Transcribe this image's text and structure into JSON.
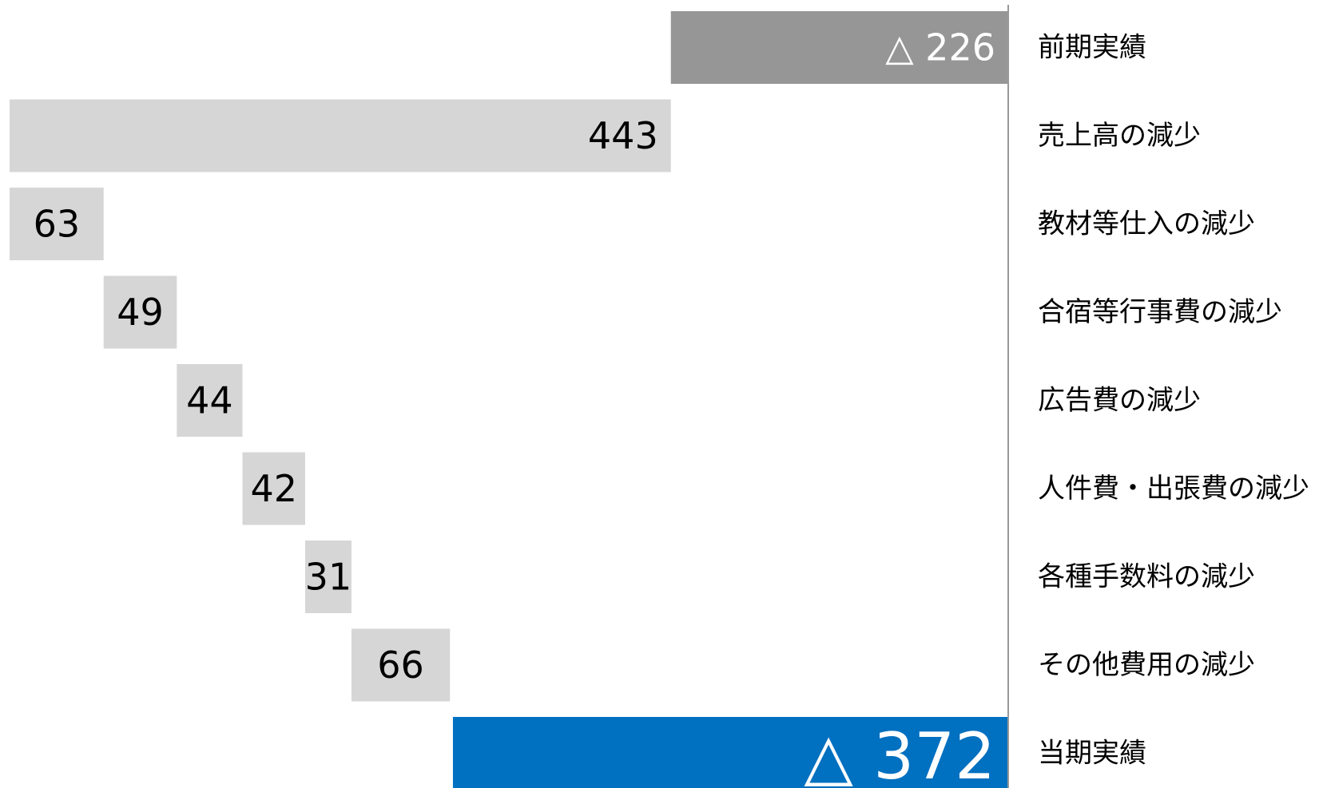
{
  "chart_data": {
    "type": "bar",
    "orientation": "horizontal-waterfall",
    "categories": [
      "前期実績",
      "売上高の減少",
      "教材等仕入の減少",
      "合宿等行事費の減少",
      "広告費の減少",
      "人件費・出張費の減少",
      "各種手数料の減少",
      "その他費用の減少",
      "当期実績"
    ],
    "values": [
      -226,
      -443,
      63,
      49,
      44,
      42,
      31,
      66,
      -372
    ],
    "value_labels": [
      "△ 226",
      "443",
      "63",
      "49",
      "44",
      "42",
      "31",
      "66",
      "△ 372"
    ],
    "bar_roles": [
      "total",
      "change",
      "change",
      "change",
      "change",
      "change",
      "change",
      "change",
      "total"
    ],
    "xlim": [
      -669,
      0
    ],
    "colors": {
      "start_total": "#969696",
      "change": "#d6d6d6",
      "end_total": "#0070c0",
      "axis": "#999999",
      "label_on_dark": "#ffffff",
      "label_on_light": "#000000"
    },
    "grid": false,
    "legend": "none"
  }
}
